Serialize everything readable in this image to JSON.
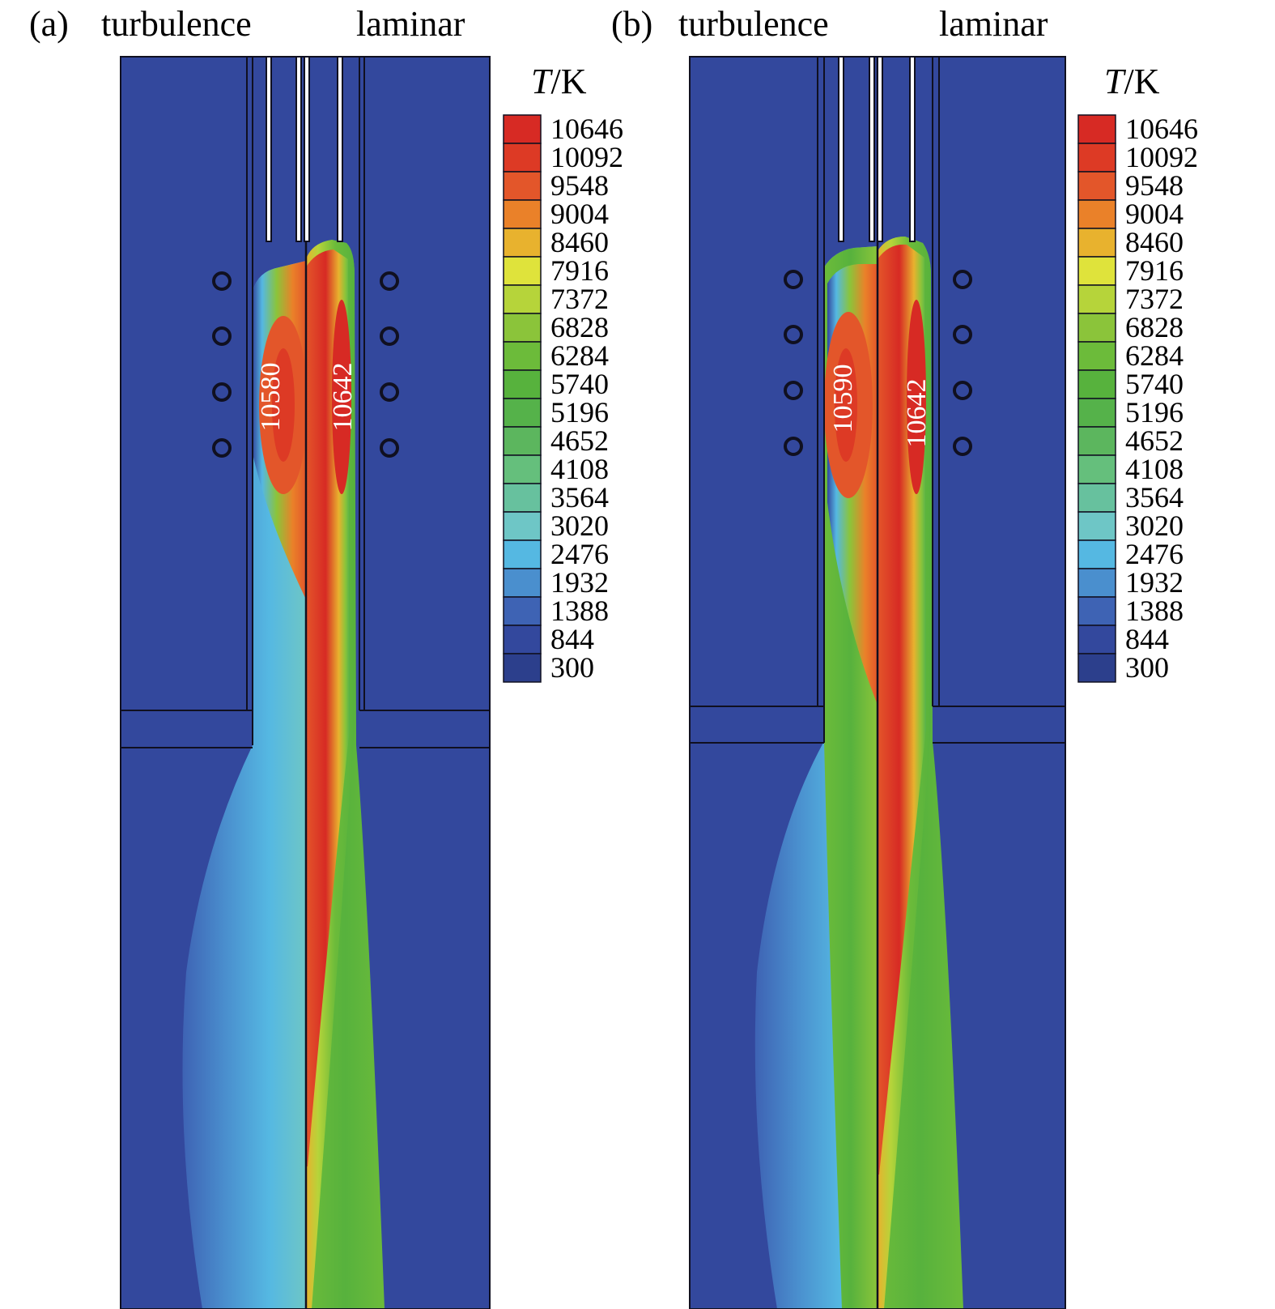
{
  "panels": [
    {
      "letter": "(a)",
      "left_label": "turbulence",
      "right_label": "laminar",
      "left_peak": "10580",
      "right_peak": "10642"
    },
    {
      "letter": "(b)",
      "left_label": "turbulence",
      "right_label": "laminar",
      "left_peak": "10590",
      "right_peak": "10642"
    }
  ],
  "legend": {
    "symbol": "T",
    "unit": "/K",
    "levels": [
      "10646",
      "10092",
      "9548",
      "9004",
      "8460",
      "7916",
      "7372",
      "6828",
      "6284",
      "5740",
      "5196",
      "4652",
      "4108",
      "3564",
      "3020",
      "2476",
      "1932",
      "1388",
      "844",
      "300"
    ],
    "colors": [
      "#d72a24",
      "#dd3a25",
      "#e3562a",
      "#ea8129",
      "#e8b22e",
      "#dfe33b",
      "#b6d43a",
      "#8bc43a",
      "#6cbb3a",
      "#57b23d",
      "#55b24a",
      "#5cb65e",
      "#65bf7c",
      "#67c19e",
      "#6ec6c6",
      "#55b8e2",
      "#4a8fce",
      "#3e63b4",
      "#33489d",
      "#2c3f8c"
    ]
  },
  "colors": {
    "background_blue": "#33489d",
    "wall": "#101020"
  }
}
